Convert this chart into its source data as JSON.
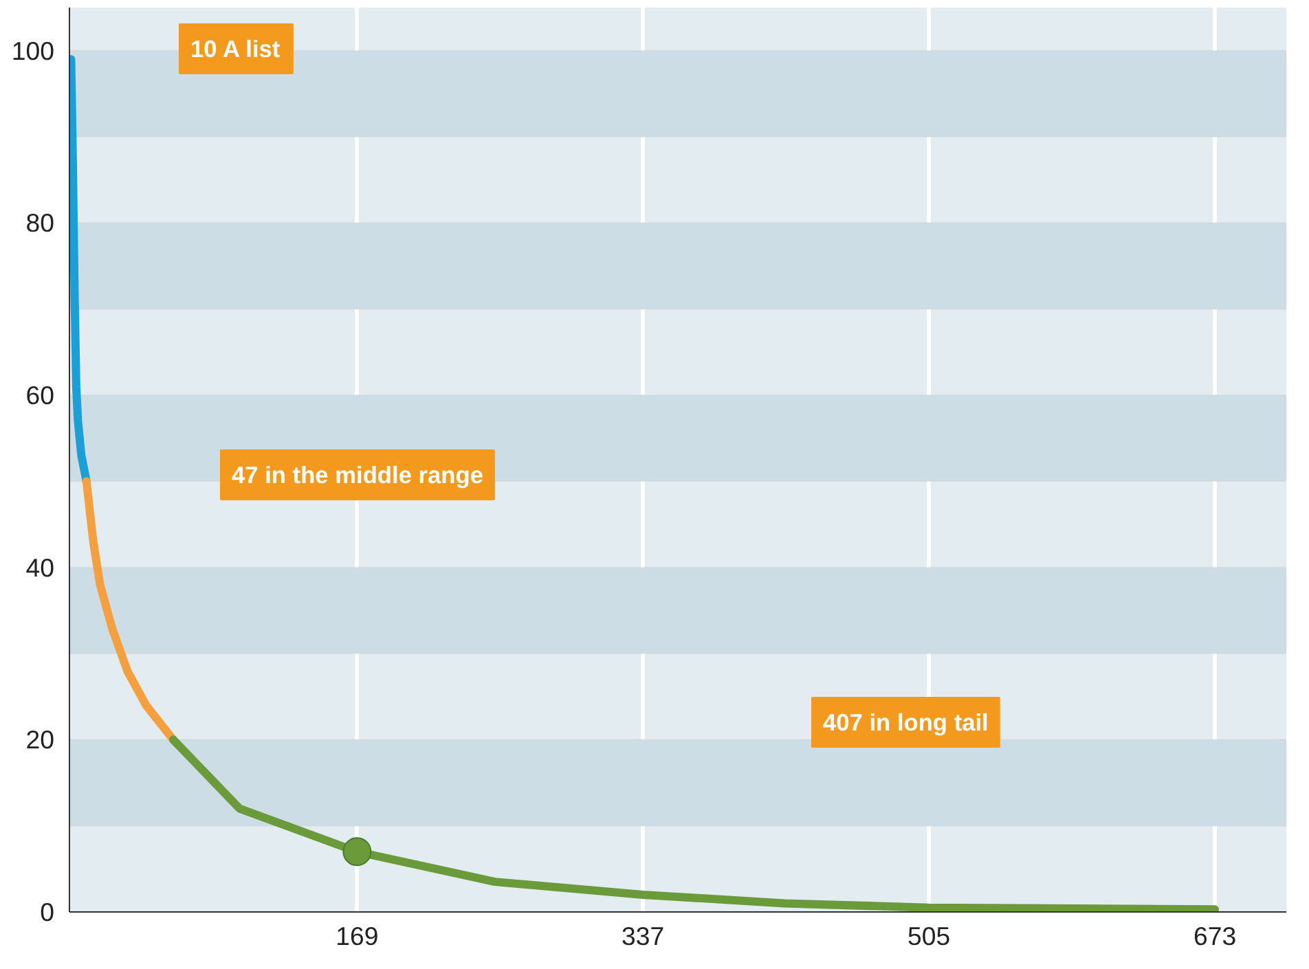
{
  "chart_data": {
    "type": "line",
    "xlim": [
      0,
      715
    ],
    "ylim": [
      0,
      105
    ],
    "xticks": [
      169,
      337,
      505,
      673
    ],
    "yticks": [
      0,
      20,
      40,
      60,
      80,
      100
    ],
    "grid": "x",
    "series": [
      {
        "color": "#1a9fd6",
        "x": [
          1,
          2,
          3,
          4,
          5,
          6,
          7,
          8,
          10
        ],
        "values": [
          99,
          87,
          72,
          61,
          57,
          55,
          53,
          52,
          50
        ]
      },
      {
        "color": "#f5a040",
        "x": [
          10,
          14,
          18,
          25,
          34,
          45,
          61
        ],
        "values": [
          50,
          43,
          38,
          33,
          28,
          24,
          20
        ]
      },
      {
        "color": "#6a9a3a",
        "x": [
          61,
          100,
          169,
          250,
          337,
          420,
          505,
          673
        ],
        "values": [
          20,
          12,
          7,
          3.5,
          2,
          1,
          0.5,
          0.3
        ]
      },
      {
        "type": "scatter",
        "color": "#6a9a3a",
        "x": [
          169
        ],
        "values": [
          7
        ],
        "marker": "circle"
      }
    ],
    "bands": [
      {
        "axis": "y",
        "from": 10,
        "to": 20,
        "color": "#cddde6"
      },
      {
        "axis": "y",
        "from": 30,
        "to": 40,
        "color": "#cddde6"
      },
      {
        "axis": "y",
        "from": 50,
        "to": 60,
        "color": "#cddde6"
      },
      {
        "axis": "y",
        "from": 70,
        "to": 80,
        "color": "#cddde6"
      },
      {
        "axis": "y",
        "from": 90,
        "to": 100,
        "color": "#cddde6"
      }
    ],
    "annotations": [
      "10 A list",
      "47 in the middle range",
      "407 in long tail"
    ]
  }
}
